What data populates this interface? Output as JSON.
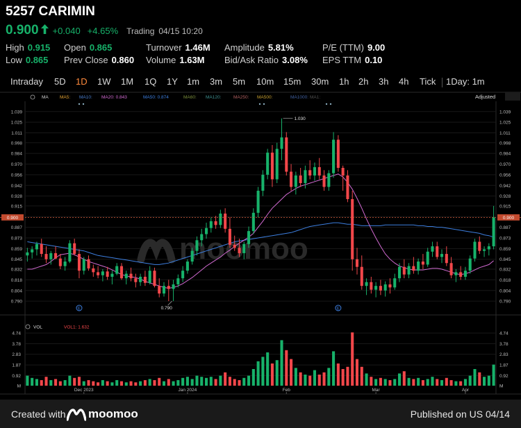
{
  "header": {
    "title": "5257 CARIMIN",
    "price": "0.900",
    "change": "+0.040",
    "change_pct": "+4.65%",
    "trading_label": "Trading",
    "timestamp": "04/15 10:20",
    "accent_up": "#17b26a",
    "accent_down": "#f2474a"
  },
  "stats": [
    {
      "label": "High",
      "value": "0.915",
      "tone": "g"
    },
    {
      "label": "Low",
      "value": "0.865",
      "tone": "g"
    },
    {
      "label": "Open",
      "value": "0.865",
      "tone": "g"
    },
    {
      "label": "Prev Close",
      "value": "0.860",
      "tone": "w"
    },
    {
      "label": "Turnover",
      "value": "1.46M",
      "tone": "w"
    },
    {
      "label": "Volume",
      "value": "1.63M",
      "tone": "w"
    },
    {
      "label": "Amplitude",
      "value": "5.81%",
      "tone": "w"
    },
    {
      "label": "Bid/Ask Ratio",
      "value": "3.08%",
      "tone": "w"
    },
    {
      "label": "P/E (TTM)",
      "value": "9.00",
      "tone": "w"
    },
    {
      "label": "EPS TTM",
      "value": "0.10",
      "tone": "w"
    }
  ],
  "tabs": [
    "Intraday",
    "5D",
    "1D",
    "1W",
    "1M",
    "1Q",
    "1Y",
    "1m",
    "3m",
    "5m",
    "10m",
    "15m",
    "30m",
    "1h",
    "2h",
    "3h",
    "4h",
    "Tick",
    "1Day: 1m"
  ],
  "active_tab": "1D",
  "ma_legend": [
    "MA",
    "MA5:",
    "MA10:",
    "MA20: 0.843",
    "MA50: 0.874",
    "MA60:",
    "MA120:",
    "MA250:",
    "MA500:",
    "MA1000:",
    "MA1:"
  ],
  "ma_colors": [
    "#d0d0d0",
    "#e0a030",
    "#4a7fd0",
    "#d36bd3",
    "#3d7fe0",
    "#7c8f3c",
    "#3e8f8f",
    "#b06060",
    "#c8a030",
    "#4060a0",
    "#505050"
  ],
  "adjusted_label": "Adjusted",
  "watermark": "moomoo",
  "vol_legend": {
    "name": "VOL",
    "value": "VOL1: 1.632"
  },
  "footer": {
    "created": "Created with",
    "brand": "moomoo",
    "published": "Published on US 04/14"
  },
  "chart_data": {
    "type": "candlestick",
    "y_ticks": [
      "1.039",
      "1.025",
      "1.011",
      "0.998",
      "0.984",
      "0.970",
      "0.956",
      "0.942",
      "0.928",
      "0.915",
      "0.901",
      "0.887",
      "0.873",
      "0.859",
      "0.845",
      "0.832",
      "0.818",
      "0.804",
      "0.790"
    ],
    "ylim": [
      0.781,
      1.047
    ],
    "current_price_label": "0.900",
    "x_labels": [
      "Dec 2023",
      "Jan 2024",
      "Feb",
      "Mar",
      "Apr"
    ],
    "x_label_index": [
      12,
      34,
      55,
      74,
      93
    ],
    "high_annotation": "1.030",
    "low_annotation": "0.790",
    "high_index": 54,
    "low_index": 31,
    "event_markers": [
      11,
      66
    ],
    "vol_ticks": [
      "4.74",
      "3.78",
      "2.83",
      "1.87",
      "0.92",
      "M"
    ],
    "vol_max": 5.0,
    "candles": [
      [
        0.85,
        0.86,
        0.842,
        0.854
      ],
      [
        0.854,
        0.862,
        0.846,
        0.858
      ],
      [
        0.858,
        0.868,
        0.85,
        0.865
      ],
      [
        0.865,
        0.872,
        0.848,
        0.852
      ],
      [
        0.852,
        0.862,
        0.84,
        0.845
      ],
      [
        0.845,
        0.856,
        0.838,
        0.853
      ],
      [
        0.853,
        0.862,
        0.845,
        0.846
      ],
      [
        0.846,
        0.852,
        0.832,
        0.836
      ],
      [
        0.836,
        0.848,
        0.83,
        0.842
      ],
      [
        0.842,
        0.87,
        0.84,
        0.866
      ],
      [
        0.866,
        0.872,
        0.85,
        0.852
      ],
      [
        0.852,
        0.858,
        0.82,
        0.83
      ],
      [
        0.83,
        0.848,
        0.825,
        0.845
      ],
      [
        0.845,
        0.85,
        0.83,
        0.833
      ],
      [
        0.833,
        0.838,
        0.822,
        0.828
      ],
      [
        0.828,
        0.836,
        0.82,
        0.824
      ],
      [
        0.824,
        0.832,
        0.816,
        0.829
      ],
      [
        0.829,
        0.835,
        0.818,
        0.822
      ],
      [
        0.822,
        0.83,
        0.812,
        0.826
      ],
      [
        0.826,
        0.84,
        0.824,
        0.836
      ],
      [
        0.836,
        0.84,
        0.818,
        0.82
      ],
      [
        0.82,
        0.83,
        0.812,
        0.826
      ],
      [
        0.826,
        0.834,
        0.816,
        0.82
      ],
      [
        0.82,
        0.826,
        0.808,
        0.815
      ],
      [
        0.815,
        0.826,
        0.81,
        0.822
      ],
      [
        0.822,
        0.83,
        0.81,
        0.814
      ],
      [
        0.814,
        0.836,
        0.812,
        0.83
      ],
      [
        0.83,
        0.834,
        0.808,
        0.81
      ],
      [
        0.81,
        0.82,
        0.795,
        0.8
      ],
      [
        0.8,
        0.815,
        0.796,
        0.81
      ],
      [
        0.81,
        0.818,
        0.79,
        0.806
      ],
      [
        0.806,
        0.818,
        0.79,
        0.812
      ],
      [
        0.812,
        0.825,
        0.808,
        0.82
      ],
      [
        0.82,
        0.836,
        0.815,
        0.83
      ],
      [
        0.83,
        0.845,
        0.826,
        0.842
      ],
      [
        0.842,
        0.86,
        0.838,
        0.856
      ],
      [
        0.856,
        0.875,
        0.85,
        0.87
      ],
      [
        0.87,
        0.885,
        0.862,
        0.878
      ],
      [
        0.878,
        0.893,
        0.872,
        0.886
      ],
      [
        0.886,
        0.9,
        0.88,
        0.895
      ],
      [
        0.895,
        0.902,
        0.885,
        0.89
      ],
      [
        0.89,
        0.91,
        0.886,
        0.905
      ],
      [
        0.905,
        0.912,
        0.88,
        0.885
      ],
      [
        0.885,
        0.9,
        0.86,
        0.864
      ],
      [
        0.864,
        0.876,
        0.856,
        0.86
      ],
      [
        0.86,
        0.872,
        0.848,
        0.853
      ],
      [
        0.853,
        0.868,
        0.845,
        0.865
      ],
      [
        0.865,
        0.888,
        0.86,
        0.882
      ],
      [
        0.882,
        0.912,
        0.878,
        0.906
      ],
      [
        0.906,
        0.94,
        0.9,
        0.935
      ],
      [
        0.935,
        0.962,
        0.928,
        0.956
      ],
      [
        0.956,
        0.99,
        0.95,
        0.985
      ],
      [
        0.985,
        0.995,
        0.94,
        0.95
      ],
      [
        0.95,
        0.998,
        0.945,
        0.99
      ],
      [
        0.99,
        1.03,
        0.975,
        1.005
      ],
      [
        1.005,
        1.012,
        0.955,
        0.96
      ],
      [
        0.96,
        0.97,
        0.935,
        0.94
      ],
      [
        0.94,
        0.96,
        0.93,
        0.955
      ],
      [
        0.955,
        0.965,
        0.94,
        0.945
      ],
      [
        0.945,
        0.968,
        0.938,
        0.962
      ],
      [
        0.962,
        0.975,
        0.95,
        0.955
      ],
      [
        0.955,
        0.972,
        0.948,
        0.966
      ],
      [
        0.966,
        0.978,
        0.95,
        0.955
      ],
      [
        0.955,
        0.962,
        0.935,
        0.94
      ],
      [
        0.94,
        0.962,
        0.935,
        0.958
      ],
      [
        0.958,
        1.012,
        0.952,
        1.002
      ],
      [
        1.002,
        1.008,
        0.96,
        0.965
      ],
      [
        0.965,
        0.968,
        0.935,
        0.955
      ],
      [
        0.955,
        0.962,
        0.92,
        0.924
      ],
      [
        0.924,
        0.935,
        0.83,
        0.845
      ],
      [
        0.845,
        0.86,
        0.825,
        0.835
      ],
      [
        0.835,
        0.85,
        0.805,
        0.81
      ],
      [
        0.81,
        0.82,
        0.798,
        0.815
      ],
      [
        0.815,
        0.822,
        0.8,
        0.805
      ],
      [
        0.805,
        0.815,
        0.795,
        0.81
      ],
      [
        0.81,
        0.818,
        0.798,
        0.804
      ],
      [
        0.804,
        0.816,
        0.796,
        0.812
      ],
      [
        0.812,
        0.82,
        0.8,
        0.808
      ],
      [
        0.808,
        0.826,
        0.805,
        0.82
      ],
      [
        0.82,
        0.84,
        0.815,
        0.835
      ],
      [
        0.835,
        0.845,
        0.82,
        0.825
      ],
      [
        0.825,
        0.84,
        0.82,
        0.836
      ],
      [
        0.836,
        0.848,
        0.826,
        0.83
      ],
      [
        0.83,
        0.846,
        0.825,
        0.842
      ],
      [
        0.842,
        0.852,
        0.832,
        0.838
      ],
      [
        0.838,
        0.86,
        0.835,
        0.855
      ],
      [
        0.855,
        0.868,
        0.848,
        0.862
      ],
      [
        0.862,
        0.868,
        0.845,
        0.848
      ],
      [
        0.848,
        0.858,
        0.84,
        0.852
      ],
      [
        0.852,
        0.862,
        0.836,
        0.84
      ],
      [
        0.84,
        0.848,
        0.82,
        0.824
      ],
      [
        0.824,
        0.832,
        0.815,
        0.828
      ],
      [
        0.828,
        0.836,
        0.818,
        0.822
      ],
      [
        0.822,
        0.835,
        0.818,
        0.83
      ],
      [
        0.83,
        0.85,
        0.826,
        0.846
      ],
      [
        0.846,
        0.872,
        0.842,
        0.868
      ],
      [
        0.868,
        0.875,
        0.852,
        0.856
      ],
      [
        0.856,
        0.862,
        0.848,
        0.858
      ],
      [
        0.858,
        0.866,
        0.85,
        0.862
      ],
      [
        0.862,
        0.915,
        0.858,
        0.9
      ]
    ],
    "volumes": [
      0.9,
      0.7,
      0.6,
      0.5,
      0.8,
      0.5,
      0.6,
      0.4,
      0.5,
      0.9,
      0.7,
      0.8,
      0.4,
      0.5,
      0.4,
      0.3,
      0.5,
      0.4,
      0.3,
      0.5,
      0.4,
      0.3,
      0.4,
      0.3,
      0.4,
      0.5,
      0.6,
      0.5,
      0.7,
      0.4,
      0.6,
      0.4,
      0.5,
      0.7,
      0.8,
      0.6,
      0.9,
      0.8,
      0.7,
      0.8,
      0.6,
      0.9,
      1.2,
      0.8,
      0.6,
      0.5,
      0.7,
      0.9,
      1.5,
      2.2,
      2.6,
      3.0,
      2.0,
      2.3,
      4.1,
      3.2,
      2.4,
      1.6,
      1.2,
      1.0,
      0.9,
      1.4,
      1.0,
      1.2,
      1.6,
      3.1,
      2.0,
      1.5,
      1.7,
      4.8,
      2.4,
      1.7,
      1.1,
      0.8,
      0.6,
      0.7,
      0.6,
      0.5,
      0.6,
      1.1,
      1.3,
      0.7,
      0.6,
      0.7,
      0.5,
      0.6,
      0.8,
      0.6,
      0.5,
      0.7,
      0.5,
      0.4,
      0.4,
      0.6,
      0.9,
      1.5,
      1.2,
      0.8,
      0.9,
      1.9
    ],
    "ma20": [
      0.832,
      0.832,
      0.834,
      0.836,
      0.838,
      0.842,
      0.847,
      0.851,
      0.852,
      0.853,
      0.851,
      0.848,
      0.845,
      0.842,
      0.84,
      0.838,
      0.836,
      0.834,
      0.831,
      0.828,
      0.825,
      0.823,
      0.822,
      0.821,
      0.819,
      0.816,
      0.814,
      0.812,
      0.81,
      0.808,
      0.807,
      0.808,
      0.81,
      0.813,
      0.817,
      0.821,
      0.826,
      0.831,
      0.836,
      0.84,
      0.844,
      0.848,
      0.853,
      0.857,
      0.862,
      0.866,
      0.87,
      0.874,
      0.879,
      0.887,
      0.895,
      0.904,
      0.912,
      0.918,
      0.924,
      0.93,
      0.934,
      0.938,
      0.941,
      0.943,
      0.945,
      0.947,
      0.949,
      0.951,
      0.953,
      0.955,
      0.957,
      0.953,
      0.946,
      0.937,
      0.925,
      0.912,
      0.898,
      0.885,
      0.873,
      0.862,
      0.852,
      0.845,
      0.84,
      0.836,
      0.834,
      0.832,
      0.831,
      0.831,
      0.831,
      0.832,
      0.833,
      0.833,
      0.832,
      0.83,
      0.828,
      0.826,
      0.825,
      0.826,
      0.828,
      0.831,
      0.834,
      0.836,
      0.838,
      0.843
    ],
    "ma50": [
      0.868,
      0.867,
      0.866,
      0.865,
      0.864,
      0.863,
      0.862,
      0.861,
      0.86,
      0.859,
      0.858,
      0.857,
      0.856,
      0.854,
      0.852,
      0.85,
      0.849,
      0.848,
      0.847,
      0.846,
      0.845,
      0.844,
      0.843,
      0.842,
      0.841,
      0.84,
      0.839,
      0.838,
      0.838,
      0.839,
      0.84,
      0.842,
      0.844,
      0.846,
      0.848,
      0.85,
      0.852,
      0.854,
      0.856,
      0.858,
      0.86,
      0.862,
      0.864,
      0.866,
      0.868,
      0.869,
      0.87,
      0.871,
      0.872,
      0.873,
      0.874,
      0.875,
      0.876,
      0.877,
      0.878,
      0.879,
      0.88,
      0.882,
      0.884,
      0.886,
      0.888,
      0.889,
      0.89,
      0.891,
      0.892,
      0.893,
      0.893,
      0.892,
      0.891,
      0.891,
      0.89,
      0.889,
      0.889,
      0.889,
      0.889,
      0.889,
      0.89,
      0.89,
      0.89,
      0.89,
      0.89,
      0.89,
      0.89,
      0.889,
      0.889,
      0.888,
      0.888,
      0.887,
      0.887,
      0.886,
      0.885,
      0.884,
      0.883,
      0.882,
      0.881,
      0.88,
      0.879,
      0.877,
      0.876,
      0.874
    ]
  }
}
